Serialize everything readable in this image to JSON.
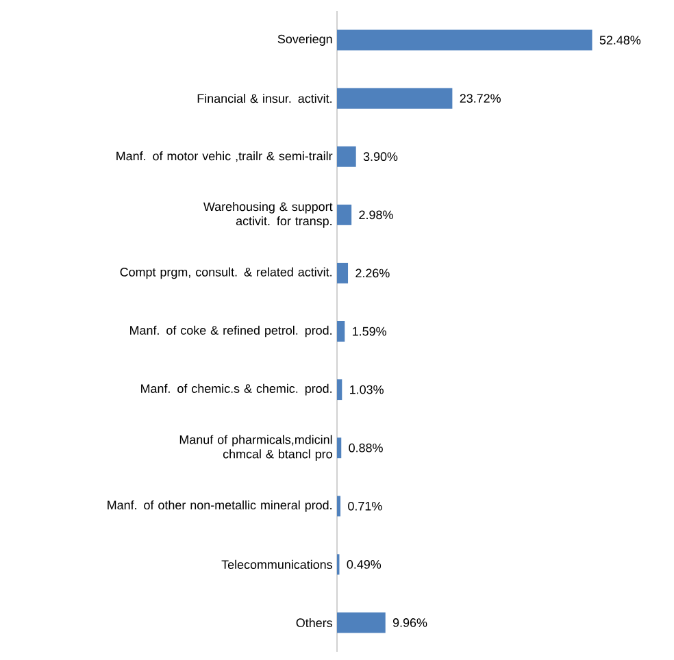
{
  "chart_data": {
    "type": "bar",
    "orientation": "horizontal",
    "categories": [
      "Soveriegn",
      "Financial & insur. activit.",
      "Manf. of motor vehic ,trailr & semi-trailr",
      "Warehousing & support activit. for transp.",
      "Compt prgm, consult. & related activit.",
      "Manf. of coke & refined petrol. prod.",
      "Manf. of chemic.s & chemic. prod.",
      "Manuf of pharmicals,mdicinl chmcal & btancl pro",
      "Manf. of other non-metallic mineral prod.",
      "Telecommunications",
      "Others"
    ],
    "values": [
      52.48,
      23.72,
      3.9,
      2.98,
      2.26,
      1.59,
      1.03,
      0.88,
      0.71,
      0.49,
      9.96
    ],
    "value_labels": [
      "52.48%",
      "23.72%",
      "3.90%",
      "2.98%",
      "2.26%",
      "1.59%",
      "1.03%",
      "0.88%",
      "0.71%",
      "0.49%",
      "9.96%"
    ],
    "color": "#4f81bd"
  }
}
